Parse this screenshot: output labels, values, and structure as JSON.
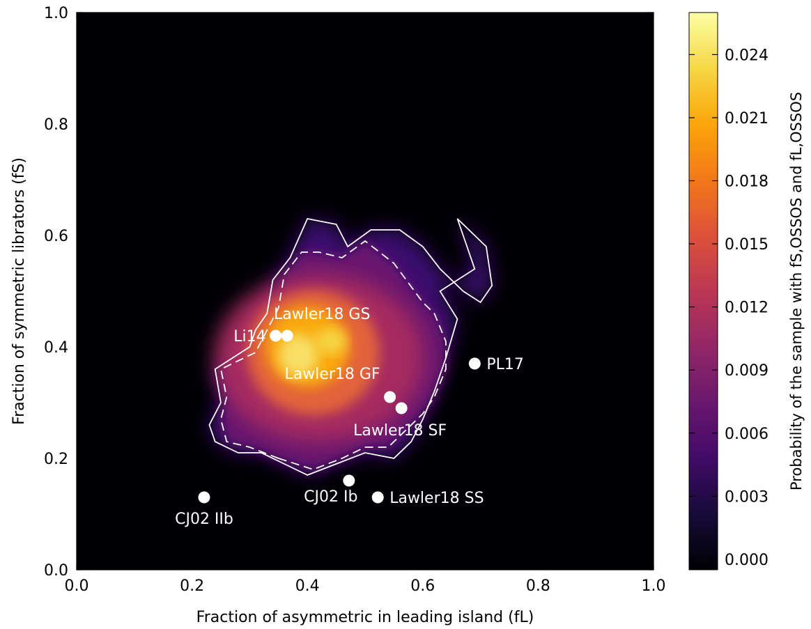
{
  "chart_data": {
    "type": "heatmap",
    "xlabel": "Fraction of asymmetric in leading island (fL)",
    "ylabel": "Fraction of symmetric librators (fS)",
    "xlim": [
      0.0,
      1.0
    ],
    "ylim": [
      0.0,
      1.0
    ],
    "x_ticks": [
      "0.0",
      "0.2",
      "0.4",
      "0.6",
      "0.8",
      "1.0"
    ],
    "y_ticks": [
      "0.0",
      "0.2",
      "0.4",
      "0.6",
      "0.8",
      "1.0"
    ],
    "colorbar": {
      "label": "Probability of the sample with fS,OSSOS and fL,OSSOS",
      "range": [
        -0.0005,
        0.026
      ],
      "ticks": [
        "0.000",
        "0.003",
        "0.006",
        "0.009",
        "0.012",
        "0.015",
        "0.018",
        "0.021",
        "0.024"
      ],
      "colormap": "inferno"
    },
    "density": {
      "description_values": "probability peaks near (0.40, 0.40), value ~0.025",
      "peak_value": 0.025,
      "bins": 1
    },
    "contours": [
      {
        "style": "solid",
        "points": [
          [
            0.36,
            0.19
          ],
          [
            0.32,
            0.21
          ],
          [
            0.28,
            0.21
          ],
          [
            0.24,
            0.23
          ],
          [
            0.23,
            0.26
          ],
          [
            0.25,
            0.3
          ],
          [
            0.24,
            0.36
          ],
          [
            0.3,
            0.4
          ],
          [
            0.31,
            0.43
          ],
          [
            0.33,
            0.46
          ],
          [
            0.34,
            0.52
          ],
          [
            0.37,
            0.56
          ],
          [
            0.4,
            0.63
          ],
          [
            0.45,
            0.62
          ],
          [
            0.47,
            0.58
          ],
          [
            0.51,
            0.61
          ],
          [
            0.56,
            0.61
          ],
          [
            0.6,
            0.58
          ],
          [
            0.63,
            0.54
          ],
          [
            0.67,
            0.5
          ],
          [
            0.7,
            0.48
          ],
          [
            0.72,
            0.51
          ],
          [
            0.71,
            0.58
          ],
          [
            0.66,
            0.63
          ],
          [
            0.69,
            0.54
          ],
          [
            0.63,
            0.5
          ],
          [
            0.66,
            0.45
          ],
          [
            0.64,
            0.38
          ],
          [
            0.62,
            0.32
          ],
          [
            0.6,
            0.27
          ],
          [
            0.58,
            0.23
          ],
          [
            0.55,
            0.2
          ],
          [
            0.5,
            0.21
          ],
          [
            0.45,
            0.19
          ],
          [
            0.4,
            0.17
          ],
          [
            0.36,
            0.19
          ]
        ]
      },
      {
        "style": "dashed",
        "points": [
          [
            0.35,
            0.2
          ],
          [
            0.3,
            0.22
          ],
          [
            0.26,
            0.23
          ],
          [
            0.25,
            0.27
          ],
          [
            0.26,
            0.31
          ],
          [
            0.25,
            0.36
          ],
          [
            0.31,
            0.39
          ],
          [
            0.33,
            0.43
          ],
          [
            0.35,
            0.47
          ],
          [
            0.36,
            0.53
          ],
          [
            0.39,
            0.57
          ],
          [
            0.42,
            0.57
          ],
          [
            0.46,
            0.56
          ],
          [
            0.5,
            0.59
          ],
          [
            0.55,
            0.55
          ],
          [
            0.6,
            0.48
          ],
          [
            0.62,
            0.46
          ],
          [
            0.64,
            0.41
          ],
          [
            0.64,
            0.36
          ],
          [
            0.62,
            0.31
          ],
          [
            0.6,
            0.28
          ],
          [
            0.57,
            0.25
          ],
          [
            0.54,
            0.22
          ],
          [
            0.5,
            0.22
          ],
          [
            0.46,
            0.2
          ],
          [
            0.41,
            0.18
          ],
          [
            0.35,
            0.2
          ]
        ]
      }
    ],
    "points": [
      {
        "label": "Li14",
        "x": 0.345,
        "y": 0.42,
        "label_anchor": "left"
      },
      {
        "label": "Lawler18 GS",
        "x": 0.365,
        "y": 0.42,
        "label_anchor": "above"
      },
      {
        "label": "PL17",
        "x": 0.69,
        "y": 0.37,
        "label_anchor": "right"
      },
      {
        "label": "Lawler18 GF",
        "x": 0.543,
        "y": 0.31,
        "label_anchor": "above-left"
      },
      {
        "label": "Lawler18 SF",
        "x": 0.563,
        "y": 0.29,
        "label_anchor": "below"
      },
      {
        "label": "CJ02 Ib",
        "x": 0.472,
        "y": 0.16,
        "label_anchor": "below-left"
      },
      {
        "label": "Lawler18 SS",
        "x": 0.522,
        "y": 0.13,
        "label_anchor": "right"
      },
      {
        "label": "CJ02 IIb",
        "x": 0.221,
        "y": 0.13,
        "label_anchor": "below"
      }
    ]
  }
}
